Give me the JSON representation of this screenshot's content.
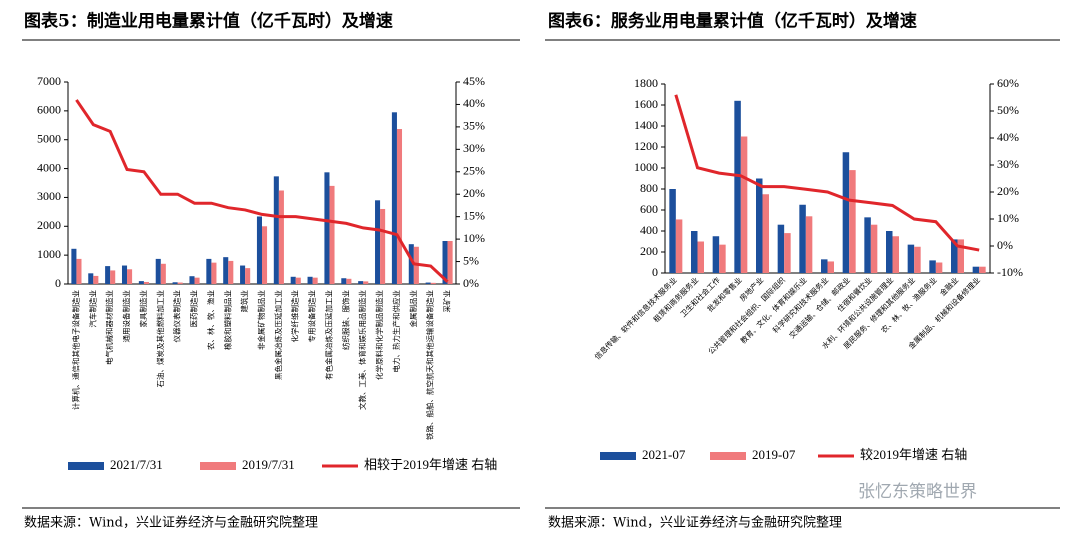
{
  "chart_data": [
    {
      "type": "bar_line",
      "title": "图表5：制造业用电量累计值（亿千瓦时）及增速",
      "categories": [
        "计算机、通信和其他电子设备制造业",
        "汽车制造业",
        "电气机械和器材制造业",
        "通用设备制造业",
        "家具制造业",
        "石油、煤炭及其他燃料加工业",
        "仪器仪表制造业",
        "医药制造业",
        "农、林、牧、渔业",
        "橡胶和塑料制品业",
        "建筑业",
        "非金属矿物制品业",
        "黑色金属冶炼及压延加工业",
        "化学纤维制造业",
        "专用设备制造业",
        "有色金属冶炼及压延加工业",
        "纺织服装、服饰业",
        "文教、工美、体育和娱乐用品制造业",
        "化学原料和化学制品制造业",
        "电力、热力生产和供应业",
        "金属制品业",
        "铁路、船舶、航空航天和其他运输设备制造业",
        "采矿业"
      ],
      "series": [
        {
          "name": "2021/7/31",
          "color": "#1c4f9c",
          "values": [
            1220,
            370,
            620,
            640,
            100,
            870,
            60,
            270,
            870,
            930,
            640,
            2340,
            3730,
            250,
            250,
            3870,
            200,
            100,
            2900,
            5950,
            1380,
            50,
            1490
          ]
        },
        {
          "name": "2019/7/31",
          "color": "#f07a7c",
          "values": [
            870,
            280,
            470,
            510,
            70,
            700,
            50,
            220,
            740,
            800,
            550,
            2000,
            3240,
            220,
            220,
            3400,
            180,
            90,
            2600,
            5370,
            1290,
            40,
            1490
          ]
        },
        {
          "name": "相较于2019年增速 右轴",
          "color": "#e0262b",
          "axis": "y2",
          "values": [
            41,
            35.5,
            34,
            25.5,
            25,
            20,
            20,
            18,
            18,
            17,
            16.5,
            15.5,
            15,
            15,
            14.5,
            14,
            13.5,
            12.5,
            12,
            11,
            4.5,
            4,
            0.5
          ]
        }
      ],
      "ylim": [
        0,
        7000
      ],
      "yticks": [
        0,
        1000,
        2000,
        3000,
        4000,
        5000,
        6000,
        7000
      ],
      "y2lim": [
        0,
        45
      ],
      "y2ticks": [
        {
          "value": 0,
          "label": "0%"
        },
        {
          "value": 5,
          "label": "5%"
        },
        {
          "value": 10,
          "label": "10%"
        },
        {
          "value": 15,
          "label": "15%"
        },
        {
          "value": 20,
          "label": "20%"
        },
        {
          "value": 25,
          "label": "25%"
        },
        {
          "value": 30,
          "label": "30%"
        },
        {
          "value": 35,
          "label": "35%"
        },
        {
          "value": 40,
          "label": "40%"
        },
        {
          "value": 45,
          "label": "45%"
        }
      ],
      "source": "数据来源：Wind，兴业证券经济与金融研究院整理",
      "label_rotation": -90
    },
    {
      "type": "bar_line",
      "title": "图表6：服务业用电量累计值（亿千瓦时）及增速",
      "categories": [
        "信息传输、软件和信息技术服务业",
        "租赁和商务服务业",
        "卫生和社会工作",
        "批发和零售业",
        "房地产业",
        "公共管理和社会组织、国际组织",
        "教育、文化、体育和娱乐业",
        "科学研究和技术服务业",
        "交通运输、仓储、邮政业",
        "住宿和餐饮业",
        "水利、环境和公共设施管理业",
        "居民服务、修理和其他服务业",
        "农、林、牧、渔服务业",
        "金融业",
        "金属制品、机械和设备修理业"
      ],
      "series": [
        {
          "name": "2021-07",
          "color": "#1c4f9c",
          "values": [
            800,
            400,
            350,
            1640,
            900,
            460,
            650,
            130,
            1150,
            530,
            400,
            270,
            120,
            320,
            60
          ]
        },
        {
          "name": "2019-07",
          "color": "#f07a7c",
          "values": [
            510,
            300,
            270,
            1300,
            750,
            380,
            540,
            110,
            980,
            460,
            350,
            250,
            100,
            320,
            60
          ]
        },
        {
          "name": "较2019年增速 右轴",
          "color": "#e0262b",
          "axis": "y2",
          "values": [
            56,
            29,
            27,
            26,
            22,
            22,
            21,
            20,
            17,
            16,
            15,
            10,
            9,
            0,
            -1.5
          ]
        }
      ],
      "ylim": [
        0,
        1800
      ],
      "yticks": [
        0,
        200,
        400,
        600,
        800,
        1000,
        1200,
        1400,
        1600,
        1800
      ],
      "y2lim": [
        -10,
        60
      ],
      "y2ticks": [
        {
          "value": -10,
          "label": "-10%"
        },
        {
          "value": 0,
          "label": "0%"
        },
        {
          "value": 10,
          "label": "10%"
        },
        {
          "value": 20,
          "label": "20%"
        },
        {
          "value": 30,
          "label": "30%"
        },
        {
          "value": 40,
          "label": "40%"
        },
        {
          "value": 50,
          "label": "50%"
        },
        {
          "value": 60,
          "label": "60%"
        }
      ],
      "source": "数据来源：Wind，兴业证券经济与金融研究院整理",
      "label_rotation": -45
    }
  ],
  "watermark": "张忆东策略世界"
}
